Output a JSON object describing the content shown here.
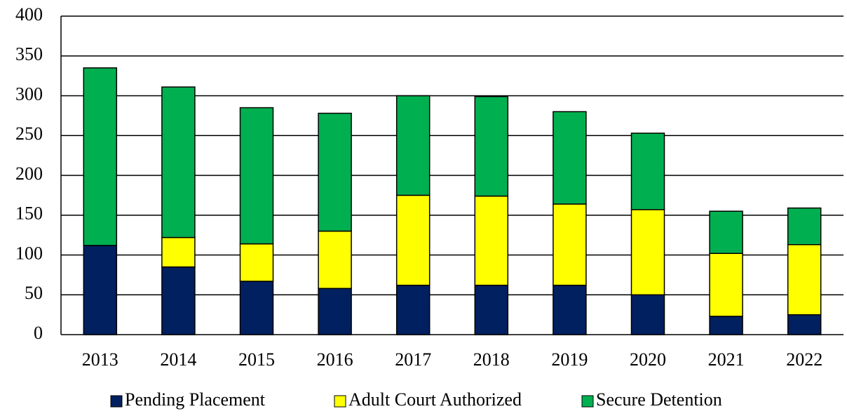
{
  "chart_data": {
    "type": "stacked_bar",
    "categories": [
      "2013",
      "2014",
      "2015",
      "2016",
      "2017",
      "2018",
      "2019",
      "2020",
      "2021",
      "2022"
    ],
    "series": [
      {
        "name": "Pending Placement",
        "color": "#002060",
        "values": [
          112,
          85,
          67,
          58,
          62,
          62,
          62,
          50,
          23,
          25
        ]
      },
      {
        "name": "Adult Court Authorized",
        "color": "#ffff00",
        "values": [
          0,
          37,
          47,
          72,
          113,
          112,
          102,
          107,
          79,
          88
        ]
      },
      {
        "name": "Secure Detention",
        "color": "#00b050",
        "values": [
          223,
          189,
          171,
          148,
          125,
          125,
          116,
          96,
          53,
          46
        ]
      }
    ],
    "ylim": [
      0,
      400
    ],
    "yticks": [
      0,
      50,
      100,
      150,
      200,
      250,
      300,
      350,
      400
    ],
    "grid": true,
    "legend": "bottom"
  }
}
